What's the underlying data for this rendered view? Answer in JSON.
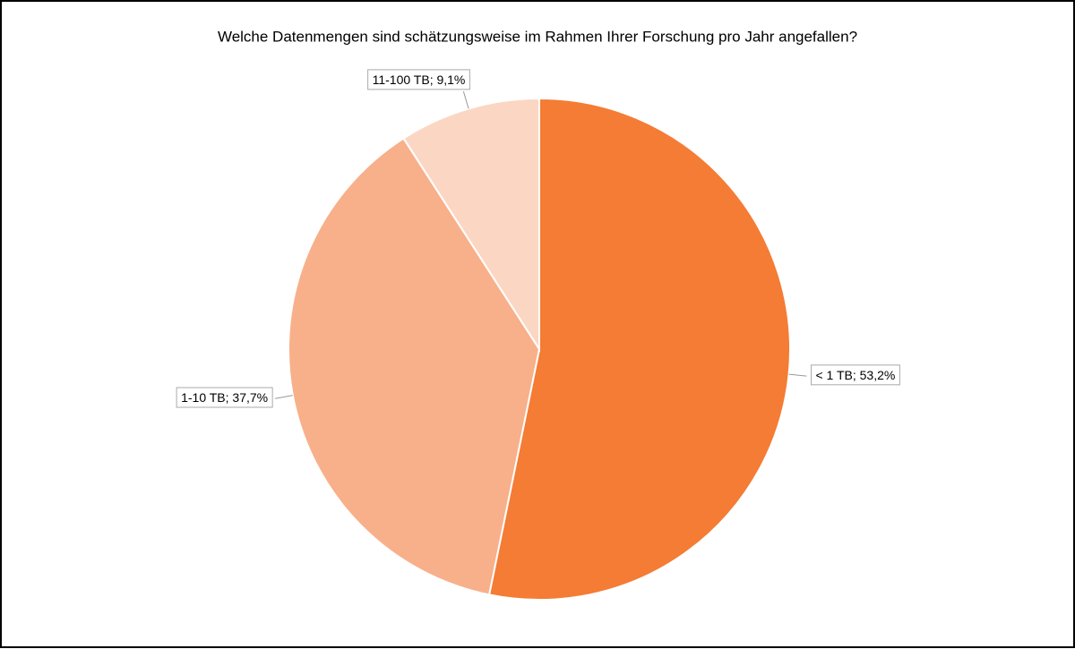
{
  "chart_data": {
    "type": "pie",
    "title": "Welche Datenmengen sind schätzungsweise im Rahmen Ihrer Forschung pro Jahr angefallen?",
    "values": [
      53.2,
      37.7,
      9.1
    ],
    "value_labels": [
      "< 1 TB; 53,2%",
      "1-10 TB; 37,7%",
      "11-100 TB; 9,1%"
    ],
    "colors": [
      "#f47c34",
      "#f8b08a",
      "#fbd7c3"
    ]
  }
}
